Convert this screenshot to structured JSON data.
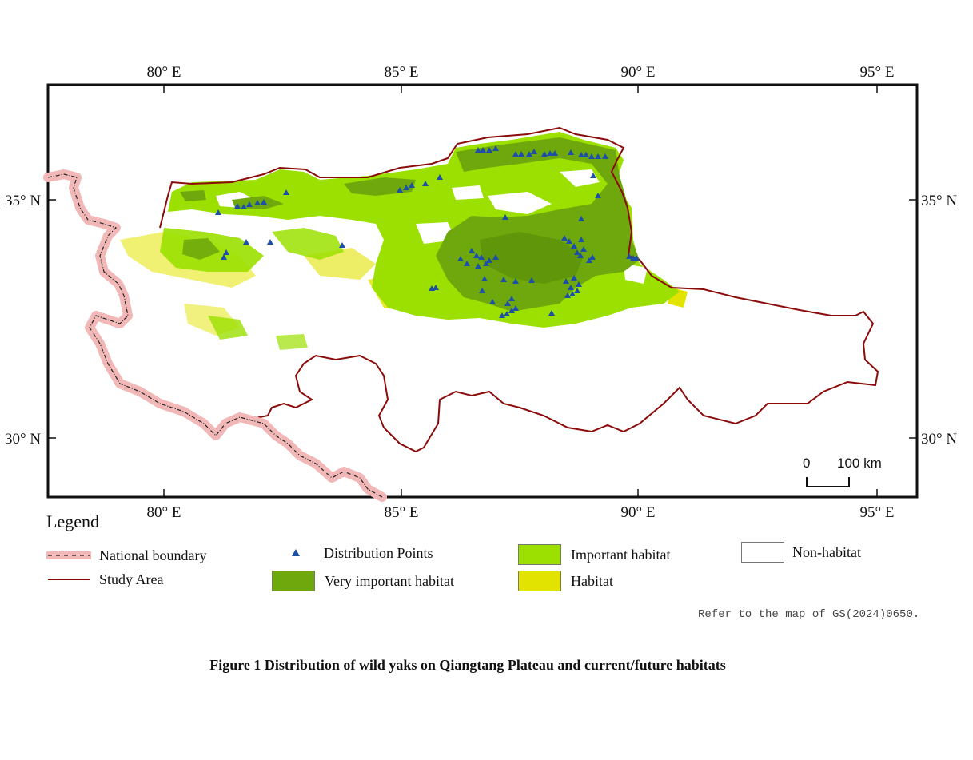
{
  "map": {
    "lon_labels": [
      "80° E",
      "85° E",
      "90° E",
      "95° E"
    ],
    "lat_labels": [
      "35° N",
      "30° N"
    ],
    "scale_bar": {
      "start": "0",
      "end_label": "100 km"
    }
  },
  "legend": {
    "title": "Legend",
    "items": {
      "national_boundary": "National boundary",
      "study_area": "Study Area",
      "distribution_points": "Distribution Points",
      "very_important": "Very important habitat",
      "important": "Important habitat",
      "habitat": "Habitat",
      "non_habitat": "Non-habitat"
    }
  },
  "colors": {
    "very_important": "#6fa80c",
    "important": "#9be000",
    "habitat": "#e3e300",
    "non_habitat": "#ffffff",
    "study_area": "#8b0a0a",
    "national_boundary": "#f2b8b8",
    "points": "#1c4fa8"
  },
  "reference_note": "Refer to the map of GS(2024)0650.",
  "caption": "Figure 1  Distribution of wild yaks on Qiangtang Plateau and current/future habitats"
}
